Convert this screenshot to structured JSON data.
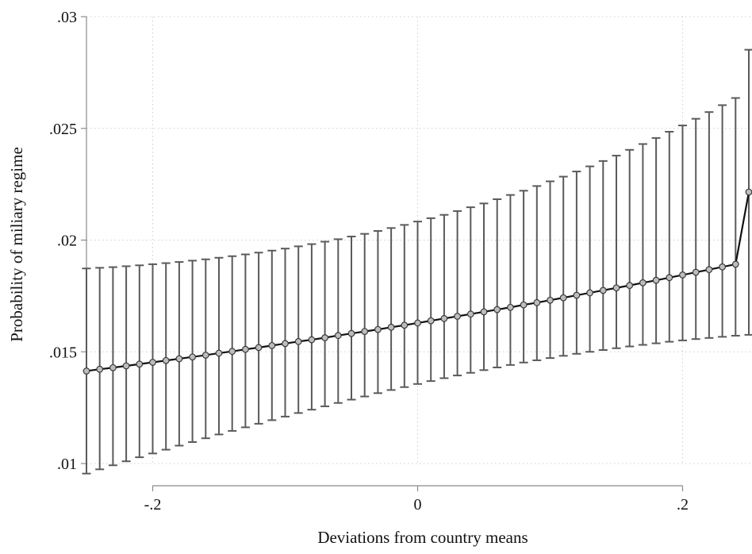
{
  "chart_data": {
    "type": "line",
    "title": "",
    "xlabel": "Deviations from country means",
    "ylabel": "Probability of miliary regime",
    "xlim": [
      -0.25,
      0.25
    ],
    "ylim": [
      0.01,
      0.03
    ],
    "x_ticks": [
      -0.2,
      0,
      0.2
    ],
    "x_tick_labels": [
      "-.2",
      "0",
      ".2"
    ],
    "y_ticks": [
      0.01,
      0.015,
      0.02,
      0.025,
      0.03
    ],
    "y_tick_labels": [
      ".01",
      ".015",
      ".02",
      ".025",
      ".03"
    ],
    "grid": true,
    "x": [
      -0.25,
      -0.24,
      -0.23,
      -0.22,
      -0.21,
      -0.2,
      -0.19,
      -0.18,
      -0.17,
      -0.16,
      -0.15,
      -0.14,
      -0.13,
      -0.12,
      -0.11,
      -0.1,
      -0.09,
      -0.08,
      -0.07,
      -0.06,
      -0.05,
      -0.04,
      -0.03,
      -0.02,
      -0.01,
      0,
      0.01,
      0.02,
      0.03,
      0.04,
      0.05,
      0.06,
      0.07,
      0.08,
      0.09,
      0.1,
      0.11,
      0.12,
      0.13,
      0.14,
      0.15,
      0.16,
      0.17,
      0.18,
      0.19,
      0.2,
      0.21,
      0.22,
      0.23,
      0.24,
      0.25
    ],
    "series": [
      {
        "values": [
          0.01414,
          0.01422,
          0.01429,
          0.01437,
          0.01445,
          0.01453,
          0.01461,
          0.01469,
          0.01477,
          0.01485,
          0.01494,
          0.01502,
          0.01511,
          0.01519,
          0.01528,
          0.01537,
          0.01546,
          0.01554,
          0.01563,
          0.01573,
          0.01582,
          0.01591,
          0.016,
          0.0161,
          0.01619,
          0.01629,
          0.01639,
          0.01649,
          0.01659,
          0.01669,
          0.01679,
          0.01689,
          0.01699,
          0.0171,
          0.0172,
          0.01731,
          0.01742,
          0.01753,
          0.01764,
          0.01775,
          0.01786,
          0.01797,
          0.01809,
          0.0182,
          0.01832,
          0.01844,
          0.01856,
          0.01868,
          0.0188,
          0.01892,
          0.02215
        ],
        "lower": [
          0.00955,
          0.00974,
          0.00992,
          0.0101,
          0.01028,
          0.01045,
          0.01062,
          0.0108,
          0.01096,
          0.01113,
          0.0113,
          0.01146,
          0.01162,
          0.01178,
          0.01194,
          0.0121,
          0.01226,
          0.01241,
          0.01256,
          0.01271,
          0.01286,
          0.013,
          0.01315,
          0.01329,
          0.01342,
          0.01356,
          0.01369,
          0.01382,
          0.01394,
          0.01406,
          0.01418,
          0.0143,
          0.01441,
          0.01452,
          0.01462,
          0.01472,
          0.01482,
          0.01491,
          0.015,
          0.01508,
          0.01516,
          0.01524,
          0.01531,
          0.01538,
          0.01545,
          0.01551,
          0.01557,
          0.01562,
          0.01567,
          0.01572,
          0.01576
        ],
        "upper": [
          0.01873,
          0.01876,
          0.01879,
          0.01883,
          0.01887,
          0.01892,
          0.01897,
          0.01902,
          0.01908,
          0.01914,
          0.01921,
          0.01928,
          0.01936,
          0.01944,
          0.01953,
          0.01962,
          0.01972,
          0.01982,
          0.01993,
          0.02004,
          0.02016,
          0.02028,
          0.02041,
          0.02054,
          0.02068,
          0.02083,
          0.02098,
          0.02113,
          0.0213,
          0.02147,
          0.02164,
          0.02183,
          0.02202,
          0.02221,
          0.02242,
          0.02263,
          0.02284,
          0.02307,
          0.0233,
          0.02354,
          0.02378,
          0.02404,
          0.0243,
          0.02457,
          0.02485,
          0.02513,
          0.02543,
          0.02573,
          0.02604,
          0.02636,
          0.02852
        ]
      }
    ]
  }
}
